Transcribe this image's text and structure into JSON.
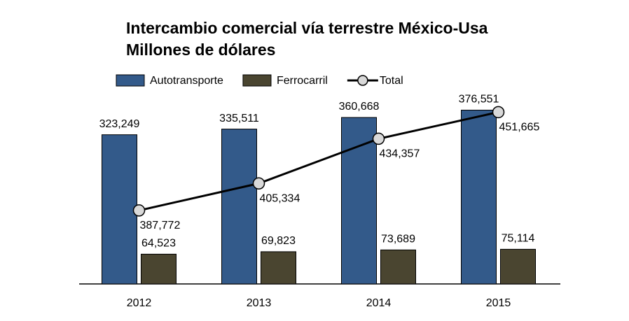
{
  "chart_data": {
    "type": "bar",
    "title": "Intercambio comercial vía terrestre México-Usa",
    "subtitle": "Millones de dólares",
    "categories": [
      "2012",
      "2013",
      "2014",
      "2015"
    ],
    "series": [
      {
        "name": "Autotransporte",
        "type": "bar",
        "color": "#335a8a",
        "values": [
          323249,
          335511,
          360668,
          376551
        ],
        "value_labels": [
          "323,249",
          "335,511",
          "360,668",
          "376,551"
        ]
      },
      {
        "name": "Ferrocarril",
        "type": "bar",
        "color": "#4a4530",
        "values": [
          64523,
          69823,
          73689,
          75114
        ],
        "value_labels": [
          "64,523",
          "69,823",
          "73,689",
          "75,114"
        ]
      },
      {
        "name": "Total",
        "type": "line",
        "axis": "y2",
        "color": "#000000",
        "values": [
          387772,
          405334,
          434357,
          451665
        ],
        "value_labels": [
          "387,772",
          "405,334",
          "434,357",
          "451,665"
        ]
      }
    ],
    "ylim": [
      0,
      400000
    ],
    "y2lim": [
      340000,
      460000
    ],
    "legend": "top"
  }
}
